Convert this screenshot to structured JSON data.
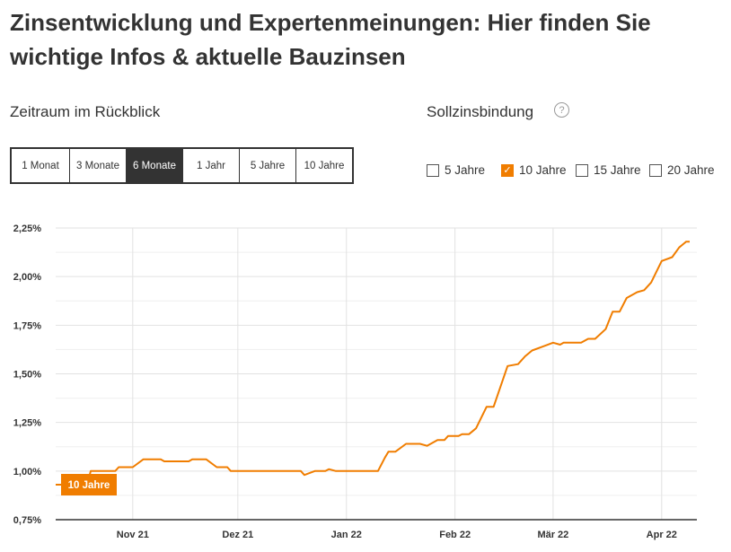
{
  "title": "Zinsentwicklung und Expertenmeinungen: Hier finden Sie wichtige Infos & aktuelle Bauzinsen",
  "period": {
    "label": "Zeitraum im Rückblick",
    "options": [
      "1 Monat",
      "3 Monate",
      "6 Monate",
      "1 Jahr",
      "5 Jahre",
      "10 Jahre"
    ],
    "selected": "6 Monate"
  },
  "binding": {
    "label": "Sollzinsbindung",
    "help_icon": "question-circle-icon",
    "help_glyph": "?",
    "check_glyph": "✓",
    "options": [
      {
        "label": "5 Jahre",
        "checked": false
      },
      {
        "label": "10 Jahre",
        "checked": true
      },
      {
        "label": "15 Jahre",
        "checked": false
      },
      {
        "label": "20 Jahre",
        "checked": false
      }
    ]
  },
  "chart_data": {
    "type": "line",
    "ylim": [
      0.75,
      2.25
    ],
    "y_ticks": [
      "2,25%",
      "2,00%",
      "1,75%",
      "1,50%",
      "1,25%",
      "1,00%",
      "0,75%"
    ],
    "y_tick_values": [
      2.25,
      2.0,
      1.75,
      1.5,
      1.25,
      1.0,
      0.75
    ],
    "x_range": [
      "2021-10-10",
      "2022-04-09"
    ],
    "x_ticks": [
      {
        "label": "Nov 21",
        "date": "2021-11-01"
      },
      {
        "label": "Dez 21",
        "date": "2021-12-01"
      },
      {
        "label": "Jan 22",
        "date": "2022-01-01"
      },
      {
        "label": "Feb 22",
        "date": "2022-02-01"
      },
      {
        "label": "Mär 22",
        "date": "2022-03-01"
      },
      {
        "label": "Apr 22",
        "date": "2022-04-01"
      }
    ],
    "grid": true,
    "line_color": "#f07d00",
    "series": [
      {
        "name": "10 Jahre",
        "points": [
          [
            "2021-10-10",
            0.93
          ],
          [
            "2021-10-19",
            0.93
          ],
          [
            "2021-10-20",
            1.0
          ],
          [
            "2021-10-27",
            1.0
          ],
          [
            "2021-10-28",
            1.02
          ],
          [
            "2021-11-01",
            1.02
          ],
          [
            "2021-11-04",
            1.06
          ],
          [
            "2021-11-09",
            1.06
          ],
          [
            "2021-11-10",
            1.05
          ],
          [
            "2021-11-17",
            1.05
          ],
          [
            "2021-11-18",
            1.06
          ],
          [
            "2021-11-22",
            1.06
          ],
          [
            "2021-11-25",
            1.02
          ],
          [
            "2021-11-28",
            1.02
          ],
          [
            "2021-11-29",
            1.0
          ],
          [
            "2021-12-19",
            1.0
          ],
          [
            "2021-12-20",
            0.98
          ],
          [
            "2021-12-23",
            1.0
          ],
          [
            "2021-12-26",
            1.0
          ],
          [
            "2021-12-27",
            1.01
          ],
          [
            "2021-12-29",
            1.0
          ],
          [
            "2022-01-10",
            1.0
          ],
          [
            "2022-01-12",
            1.07
          ],
          [
            "2022-01-13",
            1.1
          ],
          [
            "2022-01-15",
            1.1
          ],
          [
            "2022-01-18",
            1.14
          ],
          [
            "2022-01-22",
            1.14
          ],
          [
            "2022-01-24",
            1.13
          ],
          [
            "2022-01-27",
            1.16
          ],
          [
            "2022-01-29",
            1.16
          ],
          [
            "2022-01-30",
            1.18
          ],
          [
            "2022-02-02",
            1.18
          ],
          [
            "2022-02-03",
            1.19
          ],
          [
            "2022-02-05",
            1.19
          ],
          [
            "2022-02-07",
            1.22
          ],
          [
            "2022-02-10",
            1.33
          ],
          [
            "2022-02-12",
            1.33
          ],
          [
            "2022-02-16",
            1.54
          ],
          [
            "2022-02-19",
            1.55
          ],
          [
            "2022-02-21",
            1.59
          ],
          [
            "2022-02-23",
            1.62
          ],
          [
            "2022-02-26",
            1.64
          ],
          [
            "2022-03-01",
            1.66
          ],
          [
            "2022-03-03",
            1.65
          ],
          [
            "2022-03-04",
            1.66
          ],
          [
            "2022-03-09",
            1.66
          ],
          [
            "2022-03-11",
            1.68
          ],
          [
            "2022-03-13",
            1.68
          ],
          [
            "2022-03-16",
            1.73
          ],
          [
            "2022-03-18",
            1.82
          ],
          [
            "2022-03-20",
            1.82
          ],
          [
            "2022-03-22",
            1.89
          ],
          [
            "2022-03-25",
            1.92
          ],
          [
            "2022-03-27",
            1.93
          ],
          [
            "2022-03-29",
            1.97
          ],
          [
            "2022-04-01",
            2.08
          ],
          [
            "2022-04-04",
            2.1
          ],
          [
            "2022-04-06",
            2.15
          ],
          [
            "2022-04-08",
            2.18
          ],
          [
            "2022-04-09",
            2.18
          ]
        ]
      }
    ],
    "series_label": "10 Jahre"
  }
}
